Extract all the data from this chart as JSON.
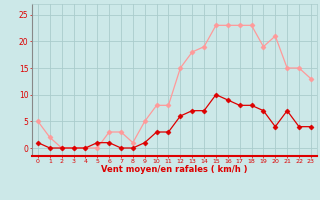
{
  "hours": [
    0,
    1,
    2,
    3,
    4,
    5,
    6,
    7,
    8,
    9,
    10,
    11,
    12,
    13,
    14,
    15,
    16,
    17,
    18,
    19,
    20,
    21,
    22,
    23
  ],
  "wind_avg": [
    1,
    0,
    0,
    0,
    0,
    1,
    1,
    0,
    0,
    1,
    3,
    3,
    6,
    7,
    7,
    10,
    9,
    8,
    8,
    7,
    4,
    7,
    4,
    4
  ],
  "wind_gust": [
    5,
    2,
    0,
    0,
    0,
    0,
    3,
    3,
    1,
    5,
    8,
    8,
    15,
    18,
    19,
    23,
    23,
    23,
    23,
    19,
    21,
    15,
    15,
    13
  ],
  "color_avg": "#dd0000",
  "color_gust": "#ff9999",
  "bg_color": "#cce8e8",
  "grid_color": "#aacccc",
  "xlabel": "Vent moyen/en rafales ( km/h )",
  "xlabel_color": "#dd0000",
  "yticks": [
    0,
    5,
    10,
    15,
    20,
    25
  ],
  "ylim": [
    -1.5,
    27
  ],
  "xlim": [
    -0.5,
    23.5
  ],
  "marker": "D",
  "markersize": 2.5,
  "linewidth": 0.9
}
